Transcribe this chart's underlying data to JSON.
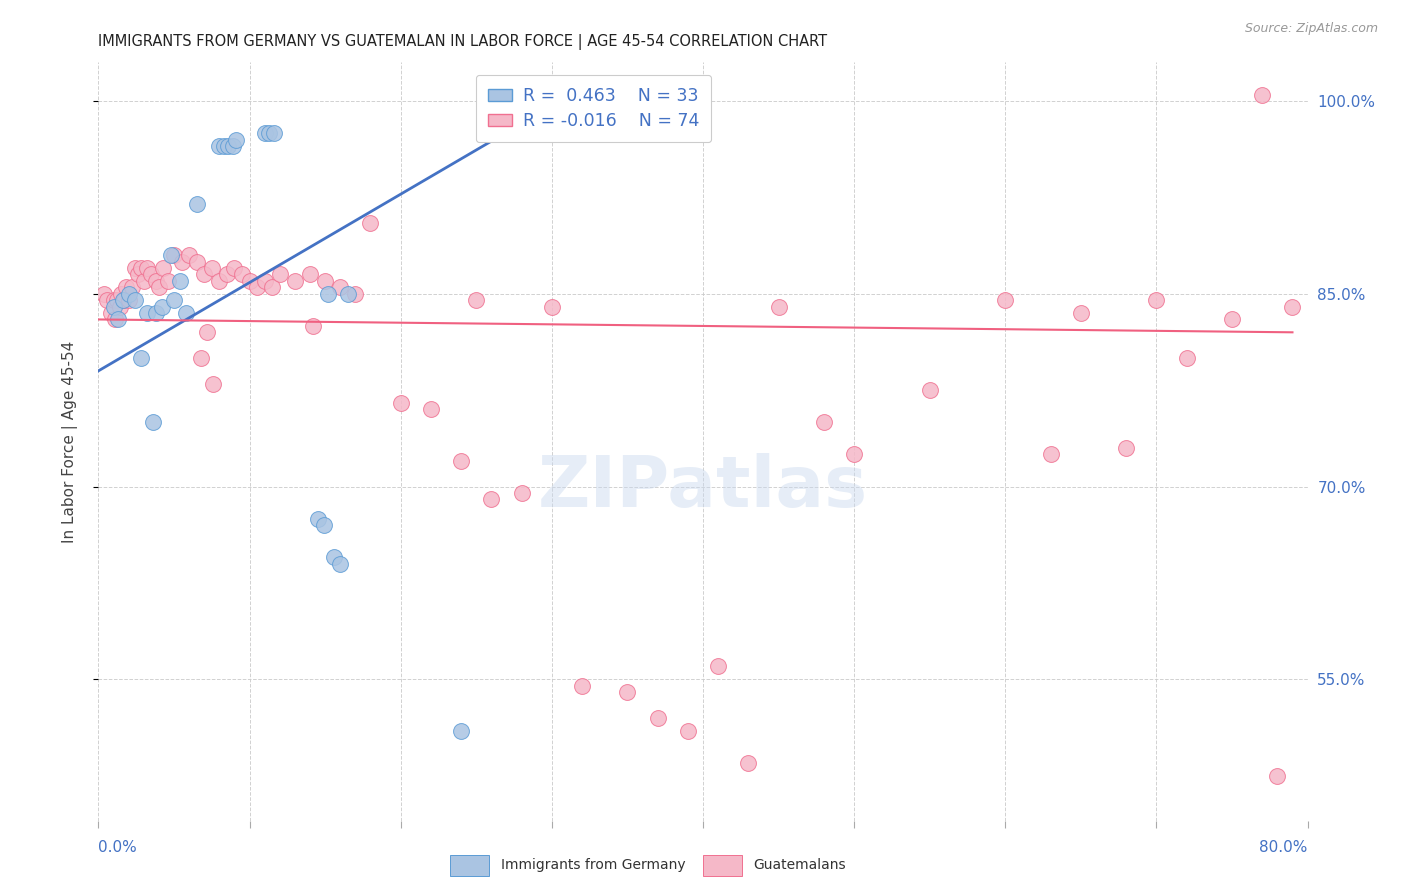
{
  "title": "IMMIGRANTS FROM GERMANY VS GUATEMALAN IN LABOR FORCE | AGE 45-54 CORRELATION CHART",
  "source": "Source: ZipAtlas.com",
  "ylabel": "In Labor Force | Age 45-54",
  "xlim": [
    0.0,
    80.0
  ],
  "ylim": [
    44.0,
    103.0
  ],
  "right_yticks": [
    55.0,
    70.0,
    85.0,
    100.0
  ],
  "legend_r_germany": "R =  0.463",
  "legend_n_germany": "N = 33",
  "legend_r_guatemalan": "R = -0.016",
  "legend_n_guatemalan": "N = 74",
  "germany_fill": "#aac4e2",
  "germany_edge": "#5b9bd5",
  "guatemalan_fill": "#f5b8c8",
  "guatemalan_edge": "#f07090",
  "germany_line": "#4472c4",
  "guatemalan_line": "#f06080",
  "germany_x": [
    1.0,
    1.3,
    1.6,
    2.0,
    2.4,
    2.8,
    3.2,
    3.6,
    3.8,
    4.2,
    4.8,
    5.0,
    5.4,
    5.8,
    6.5,
    8.0,
    8.3,
    8.6,
    8.9,
    9.1,
    11.0,
    11.3,
    11.6,
    14.5,
    14.9,
    15.2,
    15.6,
    16.0,
    16.5,
    24.0,
    27.0,
    29.0,
    30.5
  ],
  "germany_y": [
    84.0,
    83.0,
    84.5,
    85.0,
    84.5,
    80.0,
    83.5,
    75.0,
    83.5,
    84.0,
    88.0,
    84.5,
    86.0,
    83.5,
    92.0,
    96.5,
    96.5,
    96.5,
    96.5,
    97.0,
    97.5,
    97.5,
    97.5,
    67.5,
    67.0,
    85.0,
    64.5,
    64.0,
    85.0,
    51.0,
    97.5,
    97.5,
    97.5
  ],
  "guatemalan_x": [
    0.4,
    0.6,
    0.8,
    1.0,
    1.1,
    1.2,
    1.4,
    1.5,
    1.7,
    1.8,
    2.0,
    2.2,
    2.4,
    2.6,
    2.8,
    3.0,
    3.2,
    3.5,
    3.8,
    4.0,
    4.3,
    4.6,
    5.0,
    5.5,
    6.0,
    6.5,
    7.0,
    7.5,
    8.0,
    8.5,
    9.0,
    9.5,
    10.0,
    10.5,
    11.0,
    11.5,
    12.0,
    13.0,
    14.0,
    15.0,
    16.0,
    17.0,
    18.0,
    20.0,
    22.0,
    24.0,
    25.0,
    26.0,
    28.0,
    30.0,
    32.0,
    35.0,
    37.0,
    39.0,
    41.0,
    43.0,
    45.0,
    48.0,
    50.0,
    55.0,
    60.0,
    63.0,
    65.0,
    68.0,
    70.0,
    72.0,
    75.0,
    77.0,
    78.0,
    79.0,
    6.8,
    7.2,
    7.6,
    14.2
  ],
  "guatemalan_y": [
    85.0,
    84.5,
    83.5,
    84.5,
    83.0,
    84.5,
    84.0,
    85.0,
    84.5,
    85.5,
    84.5,
    85.5,
    87.0,
    86.5,
    87.0,
    86.0,
    87.0,
    86.5,
    86.0,
    85.5,
    87.0,
    86.0,
    88.0,
    87.5,
    88.0,
    87.5,
    86.5,
    87.0,
    86.0,
    86.5,
    87.0,
    86.5,
    86.0,
    85.5,
    86.0,
    85.5,
    86.5,
    86.0,
    86.5,
    86.0,
    85.5,
    85.0,
    90.5,
    76.5,
    76.0,
    72.0,
    84.5,
    69.0,
    69.5,
    84.0,
    54.5,
    54.0,
    52.0,
    51.0,
    56.0,
    48.5,
    84.0,
    75.0,
    72.5,
    77.5,
    84.5,
    72.5,
    83.5,
    73.0,
    84.5,
    80.0,
    83.0,
    100.5,
    47.5,
    84.0,
    80.0,
    82.0,
    78.0,
    82.5
  ],
  "ger_trendline_x0": 0.0,
  "ger_trendline_y0": 79.0,
  "ger_trendline_x1": 32.0,
  "ger_trendline_y1": 101.0,
  "guat_trendline_x0": 0.0,
  "guat_trendline_y0": 83.0,
  "guat_trendline_x1": 79.0,
  "guat_trendline_y1": 82.0
}
